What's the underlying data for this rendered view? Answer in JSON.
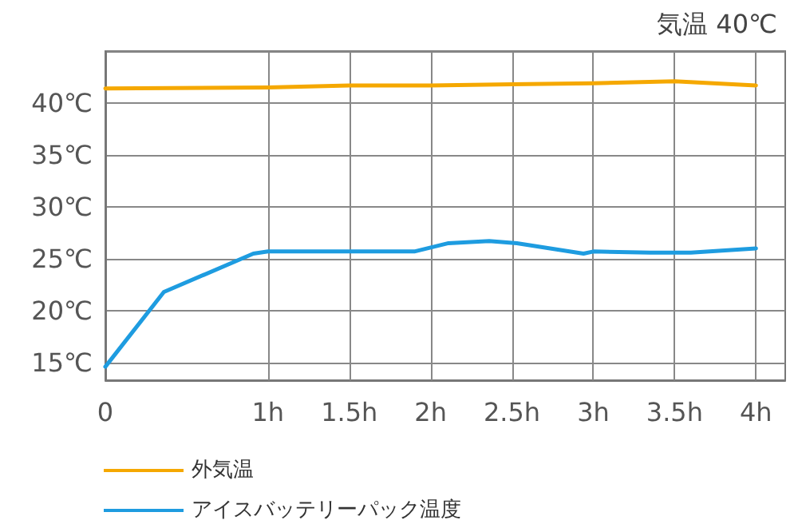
{
  "chart_data": {
    "type": "line",
    "title": "気温 40℃",
    "xlim": [
      0,
      4.18
    ],
    "xticks": [
      0,
      {
        "value": 1,
        "label": "1h"
      },
      {
        "value": 1.5,
        "label": "1.5h"
      },
      {
        "value": 2,
        "label": "2h"
      },
      {
        "value": 2.5,
        "label": "2.5h"
      },
      {
        "value": 3,
        "label": "3h"
      },
      {
        "value": 3.5,
        "label": "3.5h"
      },
      {
        "value": 4,
        "label": "4h"
      }
    ],
    "ylim": [
      13.3,
      45
    ],
    "yticks": [
      {
        "value": 15,
        "label": "15℃"
      },
      {
        "value": 20,
        "label": "20℃"
      },
      {
        "value": 25,
        "label": "25℃"
      },
      {
        "value": 30,
        "label": "30℃"
      },
      {
        "value": 35,
        "label": "35℃"
      },
      {
        "value": 40,
        "label": "40℃"
      },
      {
        "value": 45,
        "label": null
      }
    ],
    "grid": true,
    "legend": "bottom",
    "marker": "none",
    "line_style": "solid",
    "series": [
      {
        "name": "外気温",
        "color": "#f5a800",
        "x": [
          0,
          1,
          1.5,
          2,
          2.5,
          3,
          3.5,
          4
        ],
        "values": [
          41.4,
          41.5,
          41.7,
          41.7,
          41.8,
          41.9,
          42.1,
          41.7
        ]
      },
      {
        "name": "アイスバッテリーパック温度",
        "color": "#1e9ce0",
        "x": [
          0,
          0.36,
          0.91,
          1,
          1.5,
          1.9,
          2.11,
          2.36,
          2.53,
          2.94,
          3,
          3.35,
          3.6,
          4
        ],
        "values": [
          14.6,
          21.8,
          25.5,
          25.7,
          25.7,
          25.7,
          26.5,
          26.7,
          26.5,
          25.5,
          25.7,
          25.6,
          25.6,
          26.0
        ]
      }
    ]
  }
}
